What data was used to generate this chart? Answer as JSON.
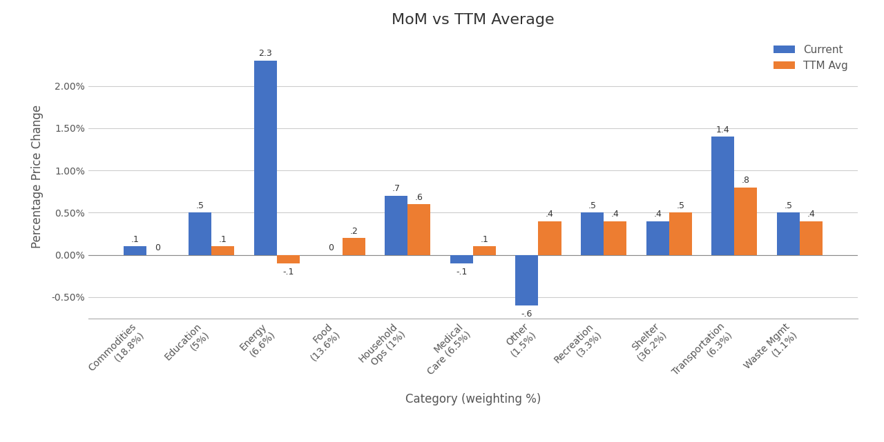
{
  "title": "MoM vs TTM Average",
  "xlabel": "Category (weighting %)",
  "ylabel": "Percentage Price Change",
  "categories": [
    "Commodities\n(18.8%)",
    "Education\n(5%)",
    "Energy\n(6.6%)",
    "Food\n(13.6%)",
    "Household\nOps (1%)",
    "Medical\nCare (6.5%)",
    "Other\n(1.5%)",
    "Recreation\n(3.3%)",
    "Shelter\n(36.2%)",
    "Transportation\n(6.3%)",
    "Waste Mgmt\n(1.1%)"
  ],
  "current": [
    0.001,
    0.005,
    0.023,
    0.0,
    0.007,
    -0.001,
    -0.006,
    0.005,
    0.004,
    0.014,
    0.005
  ],
  "ttm_avg": [
    0.0,
    0.001,
    -0.001,
    0.002,
    0.006,
    0.001,
    0.004,
    0.004,
    0.005,
    0.008,
    0.004
  ],
  "current_labels": [
    ".1",
    ".5",
    "2.3",
    "0",
    ".7",
    "-.1",
    "-.6",
    ".5",
    ".4",
    "1.4",
    ".5"
  ],
  "ttm_labels": [
    "0",
    ".1",
    "-.1",
    ".2",
    ".6",
    ".1",
    ".4",
    ".4",
    ".5",
    ".8",
    ".4"
  ],
  "current_color": "#4472C4",
  "ttm_color": "#ED7D31",
  "legend_labels": [
    "Current",
    "TTM Avg"
  ],
  "background_color": "#FFFFFF",
  "grid_color": "#CCCCCC",
  "title_fontsize": 16,
  "axis_label_fontsize": 12,
  "tick_fontsize": 10,
  "bar_label_fontsize": 9,
  "ylim_min": -0.0075,
  "ylim_max": 0.026,
  "yticks": [
    -0.005,
    0.0,
    0.005,
    0.01,
    0.015,
    0.02
  ]
}
